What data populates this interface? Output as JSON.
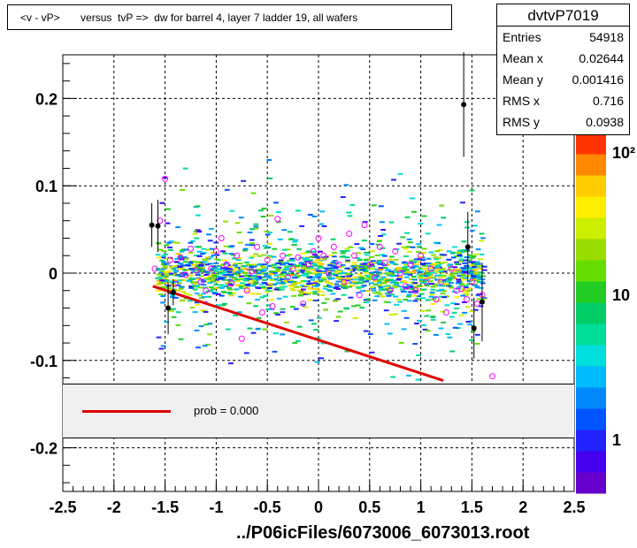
{
  "title": "<v - vP>       versus  tvP =>  dw for barrel 4, layer 7 ladder 19, all wafers",
  "stats": {
    "name": "dvtvP7019",
    "rows": [
      {
        "label": "Entries",
        "value": "54918"
      },
      {
        "label": "Mean x",
        "value": "0.02644"
      },
      {
        "label": "Mean y",
        "value": "0.001416"
      },
      {
        "label": "RMS x",
        "value": "0.716"
      },
      {
        "label": "RMS y",
        "value": "0.0938"
      }
    ]
  },
  "legend": {
    "label": "prob = 0.000",
    "color": "#e00000"
  },
  "footer": "../P06icFiles/6073006_6073013.root",
  "colors": {
    "fit": "#e00000",
    "profile_open": "#ff00ff",
    "profile_filled": "#000000"
  },
  "chart_data": {
    "type": "scatter",
    "xlim": [
      -2.5,
      2.5
    ],
    "ylim": [
      -0.25,
      0.25
    ],
    "x_ticks": [
      "-2.5",
      "-2",
      "-1.5",
      "-1",
      "-0.5",
      "0",
      "0.5",
      "1",
      "1.5",
      "2",
      "2.5"
    ],
    "y_ticks": [
      "0.2",
      "0.1",
      "0",
      "-0.1",
      "-0.2"
    ],
    "grid": true,
    "z_scale": "log",
    "z_ticks": [
      "1",
      "10",
      "10²"
    ],
    "fit_line": {
      "x": [
        -1.62,
        1.22
      ],
      "y": [
        -0.015,
        -0.123
      ]
    },
    "profile_open": [
      {
        "x": -1.6,
        "y": 0.005
      },
      {
        "x": -1.55,
        "y": 0.06
      },
      {
        "x": -1.5,
        "y": 0.108
      },
      {
        "x": -1.45,
        "y": 0.015
      },
      {
        "x": -1.4,
        "y": -0.012
      },
      {
        "x": -1.35,
        "y": 0.018
      },
      {
        "x": -1.3,
        "y": -0.002
      },
      {
        "x": -1.25,
        "y": 0.028
      },
      {
        "x": -1.2,
        "y": 0.003
      },
      {
        "x": -1.15,
        "y": -0.01
      },
      {
        "x": -1.1,
        "y": -0.02
      },
      {
        "x": -1.05,
        "y": 0.005
      },
      {
        "x": -1.0,
        "y": 0.025
      },
      {
        "x": -0.95,
        "y": 0.04
      },
      {
        "x": -0.9,
        "y": 0.01
      },
      {
        "x": -0.85,
        "y": -0.012
      },
      {
        "x": -0.8,
        "y": 0.02
      },
      {
        "x": -0.75,
        "y": -0.075
      },
      {
        "x": -0.7,
        "y": -0.02
      },
      {
        "x": -0.65,
        "y": 0.002
      },
      {
        "x": -0.6,
        "y": 0.03
      },
      {
        "x": -0.55,
        "y": -0.045
      },
      {
        "x": -0.5,
        "y": 0.015
      },
      {
        "x": -0.45,
        "y": -0.038
      },
      {
        "x": -0.4,
        "y": 0.062
      },
      {
        "x": -0.35,
        "y": 0.02
      },
      {
        "x": -0.3,
        "y": -0.005
      },
      {
        "x": -0.25,
        "y": 0.005
      },
      {
        "x": -0.2,
        "y": 0.018
      },
      {
        "x": -0.15,
        "y": -0.035
      },
      {
        "x": -0.1,
        "y": 0.01
      },
      {
        "x": -0.05,
        "y": 0.025
      },
      {
        "x": 0.0,
        "y": 0.04
      },
      {
        "x": 0.05,
        "y": 0.02
      },
      {
        "x": 0.1,
        "y": 0.0
      },
      {
        "x": 0.15,
        "y": 0.03
      },
      {
        "x": 0.2,
        "y": 0.01
      },
      {
        "x": 0.25,
        "y": -0.01
      },
      {
        "x": 0.3,
        "y": 0.045
      },
      {
        "x": 0.35,
        "y": 0.02
      },
      {
        "x": 0.4,
        "y": -0.025
      },
      {
        "x": 0.45,
        "y": 0.055
      },
      {
        "x": 0.5,
        "y": 0.01
      },
      {
        "x": 0.55,
        "y": -0.005
      },
      {
        "x": 0.6,
        "y": 0.03
      },
      {
        "x": 0.65,
        "y": 0.012
      },
      {
        "x": 0.7,
        "y": -0.02
      },
      {
        "x": 0.75,
        "y": 0.025
      },
      {
        "x": 0.8,
        "y": 0.0
      },
      {
        "x": 0.85,
        "y": -0.015
      },
      {
        "x": 0.9,
        "y": 0.01
      },
      {
        "x": 0.95,
        "y": -0.02
      },
      {
        "x": 1.0,
        "y": 0.02
      },
      {
        "x": 1.05,
        "y": -0.01
      },
      {
        "x": 1.1,
        "y": 0.005
      },
      {
        "x": 1.15,
        "y": -0.03
      },
      {
        "x": 1.2,
        "y": -0.01
      },
      {
        "x": 1.25,
        "y": -0.045
      },
      {
        "x": 1.3,
        "y": 0.005
      },
      {
        "x": 1.35,
        "y": -0.02
      },
      {
        "x": 1.4,
        "y": -0.018
      },
      {
        "x": 1.45,
        "y": -0.03
      },
      {
        "x": 1.5,
        "y": -0.01
      },
      {
        "x": 1.55,
        "y": -0.035
      },
      {
        "x": 1.6,
        "y": -0.025
      },
      {
        "x": 1.7,
        "y": -0.118
      }
    ],
    "profile_filled": [
      {
        "x": -1.63,
        "y": 0.055,
        "err": 0.025
      },
      {
        "x": -1.57,
        "y": 0.054,
        "err": 0.03
      },
      {
        "x": -1.47,
        "y": -0.04,
        "err": 0.03
      },
      {
        "x": -1.42,
        "y": -0.022,
        "err": 0.015
      },
      {
        "x": 1.42,
        "y": 0.193,
        "err": 0.06
      },
      {
        "x": 1.46,
        "y": 0.03,
        "err": 0.04
      },
      {
        "x": 1.52,
        "y": -0.063,
        "err": 0.035
      },
      {
        "x": 1.6,
        "y": -0.033,
        "err": 0.045
      }
    ]
  }
}
